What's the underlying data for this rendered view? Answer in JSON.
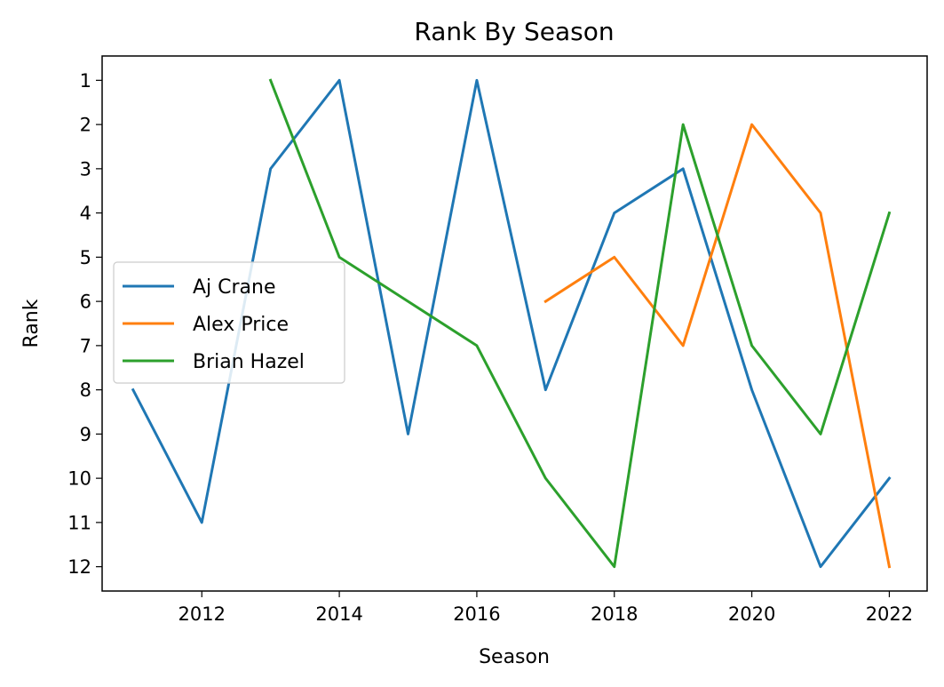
{
  "chart_data": {
    "type": "line",
    "title": "Rank By Season",
    "xlabel": "Season",
    "ylabel": "Rank",
    "xlim": [
      2010.55,
      2022.55
    ],
    "ylim": [
      12.55,
      0.45
    ],
    "y_inverted": true,
    "xticks": [
      2012,
      2014,
      2016,
      2018,
      2020,
      2022
    ],
    "yticks": [
      1,
      2,
      3,
      4,
      5,
      6,
      7,
      8,
      9,
      10,
      11,
      12
    ],
    "grid": false,
    "legend_position": "center-left",
    "series": [
      {
        "name": "Aj Crane",
        "color": "#1f77b4",
        "x": [
          2011,
          2012,
          2013,
          2014,
          2015,
          2016,
          2017,
          2018,
          2019,
          2020,
          2021,
          2022
        ],
        "y": [
          8,
          11,
          3,
          1,
          9,
          1,
          8,
          4,
          3,
          8,
          12,
          10
        ]
      },
      {
        "name": "Alex Price",
        "color": "#ff7f0e",
        "x": [
          2017,
          2018,
          2019,
          2020,
          2021,
          2022
        ],
        "y": [
          6,
          5,
          7,
          2,
          4,
          12
        ]
      },
      {
        "name": "Brian Hazel",
        "color": "#2ca02c",
        "x": [
          2013,
          2014,
          2015,
          2016,
          2017,
          2018,
          2019,
          2020,
          2021,
          2022
        ],
        "y": [
          1,
          5,
          6,
          7,
          10,
          12,
          2,
          7,
          9,
          4
        ]
      }
    ]
  }
}
